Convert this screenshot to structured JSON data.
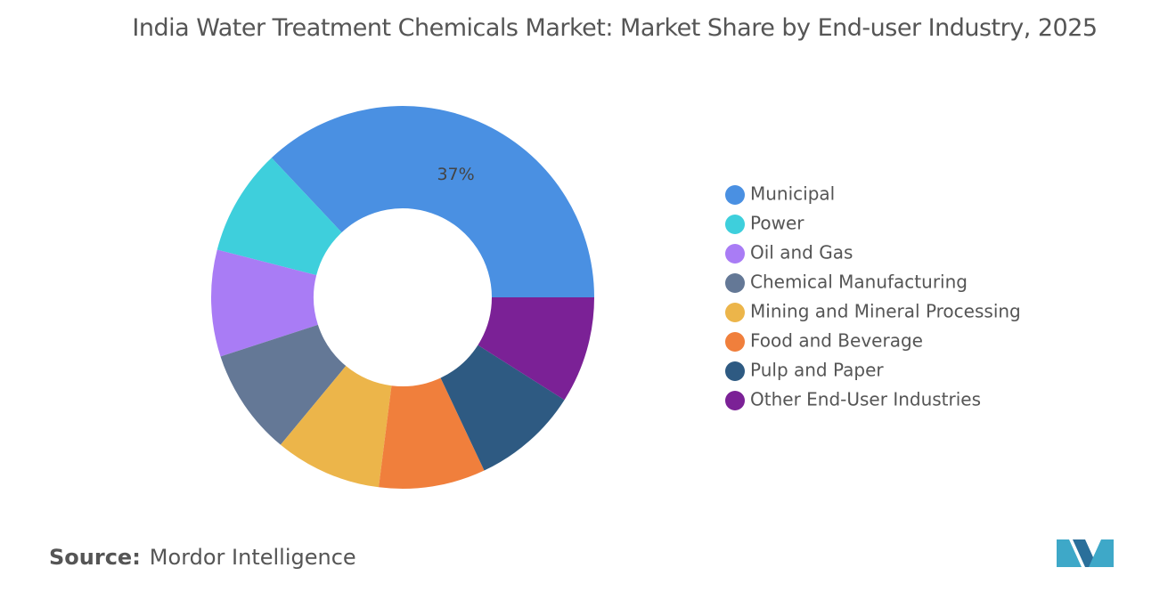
{
  "chart_data": {
    "type": "donut",
    "title": "India Water Treatment Chemicals Market: Market Share by End-user Industry, 2025",
    "categories": [
      "Municipal",
      "Power",
      "Oil and Gas",
      "Chemical Manufacturing",
      "Mining and Mineral Processing",
      "Food and Beverage",
      "Pulp and Paper",
      "Other End-User Industries"
    ],
    "values": [
      37,
      9,
      9,
      9,
      9,
      9,
      9,
      9
    ],
    "value_labels": [
      "37%",
      null,
      null,
      null,
      null,
      null,
      null,
      null
    ],
    "colors": [
      "#4a90e2",
      "#3ecfdc",
      "#a97cf5",
      "#647896",
      "#ecb54a",
      "#f07f3c",
      "#2e5a82",
      "#7b2196"
    ],
    "legend": "right"
  },
  "source": {
    "label": "Source:",
    "name": "Mordor Intelligence"
  }
}
